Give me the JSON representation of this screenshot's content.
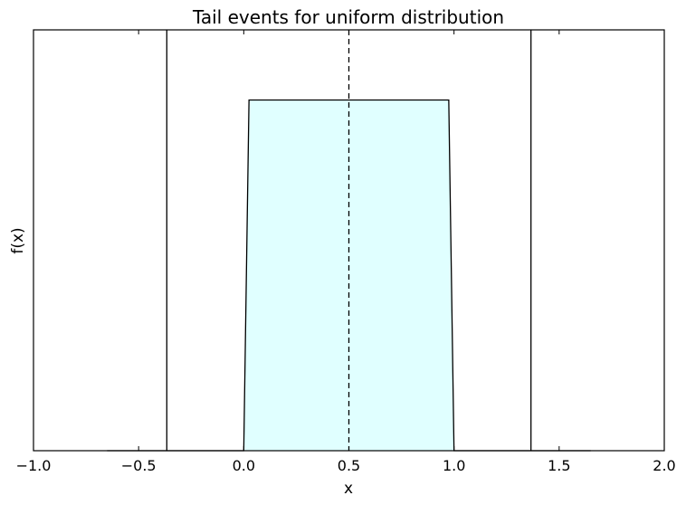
{
  "chart_data": {
    "type": "line",
    "title": "Tail events for uniform distribution",
    "xlabel": "x",
    "ylabel": "f(x)",
    "xlim": [
      -1.0,
      2.0
    ],
    "ylim": [
      0,
      1.2
    ],
    "xticks": [
      -1.0,
      -0.5,
      0.0,
      0.5,
      1.0,
      1.5,
      2.0
    ],
    "xtick_labels": [
      "−1.0",
      "−0.5",
      "0.0",
      "0.5",
      "1.0",
      "1.5",
      "2.0"
    ],
    "yticks_shown": false,
    "grid": false,
    "series": [
      {
        "x": [
          -0.65,
          0.0,
          0.025,
          0.975,
          1.0,
          1.65
        ],
        "y": [
          0,
          0,
          1,
          1,
          0,
          0
        ],
        "color": "#000000",
        "fill": "#e0ffff"
      }
    ],
    "vlines": [
      {
        "x": -0.366,
        "style": "solid",
        "color": "#000000"
      },
      {
        "x": 0.5,
        "style": "dashed",
        "color": "#000000"
      },
      {
        "x": 1.366,
        "style": "solid",
        "color": "#000000"
      }
    ]
  }
}
